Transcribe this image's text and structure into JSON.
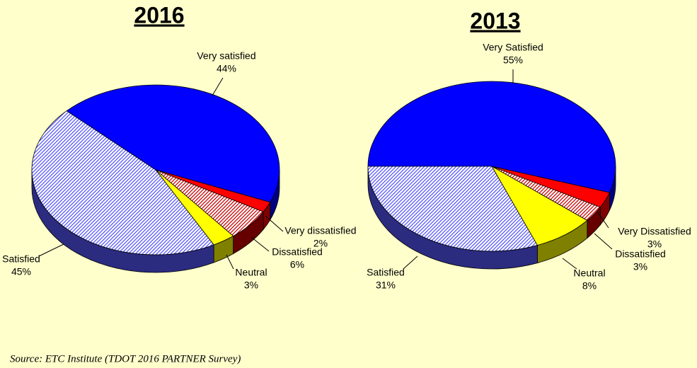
{
  "chart_data": [
    {
      "type": "pie",
      "title": "2016",
      "categories": [
        "Very satisfied",
        "Very dissatisfied",
        "Dissatisfied",
        "Neutral",
        "Satisfied"
      ],
      "values": [
        44,
        2,
        6,
        3,
        45
      ],
      "value_labels": [
        "44%",
        "2%",
        "6%",
        "3%",
        "45%"
      ],
      "colors": [
        "#0000ff",
        "#ff0000",
        "#cc0000",
        "#ffff00",
        "#5555ff"
      ],
      "hatch": [
        false,
        false,
        true,
        false,
        true
      ]
    },
    {
      "type": "pie",
      "title": "2013",
      "categories": [
        "Very Satisfied",
        "Very Dissatisfied",
        "Dissatisfied",
        "Neutral",
        "Satisfied"
      ],
      "values": [
        55,
        3,
        3,
        8,
        31
      ],
      "value_labels": [
        "55%",
        "3%",
        "3%",
        "8%",
        "31%"
      ],
      "colors": [
        "#0000ff",
        "#ff0000",
        "#cc0000",
        "#ffff00",
        "#5555ff"
      ],
      "hatch": [
        false,
        false,
        true,
        false,
        true
      ]
    }
  ],
  "source": "Source:  ETC Institute (TDOT 2016 PARTNER Survey)"
}
